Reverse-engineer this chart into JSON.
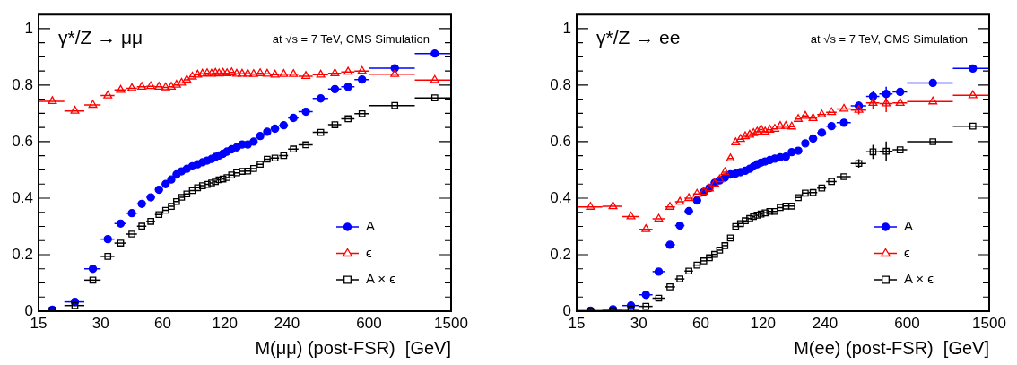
{
  "chart_data": [
    {
      "type": "scatter",
      "title": "γ*/Z → μμ",
      "xlabel": "M(μμ) (post-FSR)  [GeV]",
      "annotations": [
        "at √s = 7 TeV, CMS Simulation"
      ],
      "log": "x",
      "grid": false,
      "legend": "bottom right",
      "xlim": [
        15,
        1500
      ],
      "xticks": [
        15,
        30,
        60,
        120,
        240,
        600,
        1500
      ],
      "ylim": [
        0,
        1.05
      ],
      "yticks": [
        0,
        {
          "value": 0.05,
          "label": null
        },
        {
          "value": 0.1,
          "label": null
        },
        {
          "value": 0.15,
          "label": null
        },
        0.2,
        {
          "value": 0.25,
          "label": null
        },
        {
          "value": 0.3,
          "label": null
        },
        {
          "value": 0.35,
          "label": null
        },
        0.4,
        {
          "value": 0.45,
          "label": null
        },
        {
          "value": 0.5,
          "label": null
        },
        {
          "value": 0.55,
          "label": null
        },
        0.6,
        {
          "value": 0.65,
          "label": null
        },
        {
          "value": 0.7,
          "label": null
        },
        {
          "value": 0.75,
          "label": null
        },
        0.8,
        {
          "value": 0.85,
          "label": null
        },
        {
          "value": 0.9,
          "label": null
        },
        {
          "value": 0.95,
          "label": null
        },
        1
      ],
      "x": [
        17.5,
        22.5,
        27.5,
        32.5,
        37.5,
        42.5,
        47.5,
        52.5,
        57.5,
        62,
        66,
        70,
        74,
        78.5,
        83.5,
        88.5,
        93.5,
        98.5,
        103.5,
        108,
        112.5,
        117.5,
        123,
        129.5,
        137,
        145.5,
        155,
        165.5,
        178,
        192.5,
        210,
        231.5,
        258,
        296.5,
        350,
        410,
        475,
        555,
        800,
        1250
      ],
      "series": [
        {
          "name": "A",
          "color": "#0000ff",
          "marker": "circle",
          "values": [
            0.005,
            0.033,
            0.15,
            0.255,
            0.31,
            0.347,
            0.38,
            0.403,
            0.43,
            0.45,
            0.466,
            0.484,
            0.495,
            0.504,
            0.513,
            0.52,
            0.527,
            0.533,
            0.539,
            0.546,
            0.551,
            0.557,
            0.565,
            0.573,
            0.58,
            0.59,
            0.59,
            0.6,
            0.62,
            0.635,
            0.646,
            0.658,
            0.684,
            0.706,
            0.753,
            0.786,
            0.794,
            0.82,
            0.86,
            0.912
          ],
          "xerrors": [
            null,
            [
              20,
              25
            ],
            [
              25,
              30
            ],
            [
              30,
              35
            ],
            [
              35,
              40
            ],
            [
              40,
              45
            ],
            [
              45,
              50
            ],
            [
              50,
              55
            ],
            [
              55,
              60
            ],
            [
              60,
              64
            ],
            [
              64,
              68
            ],
            [
              68,
              72
            ],
            [
              72,
              76
            ],
            [
              76,
              81
            ],
            [
              81,
              86
            ],
            [
              86,
              91
            ],
            [
              91,
              96
            ],
            [
              96,
              101
            ],
            [
              101,
              106
            ],
            [
              106,
              110
            ],
            [
              110,
              115
            ],
            [
              115,
              120
            ],
            [
              120,
              126
            ],
            [
              126,
              133
            ],
            [
              133,
              141
            ],
            [
              141,
              150
            ],
            [
              150,
              160
            ],
            [
              160,
              171
            ],
            [
              171,
              185
            ],
            [
              185,
              200
            ],
            [
              200,
              220
            ],
            [
              220,
              243
            ],
            [
              243,
              273
            ],
            [
              273,
              320
            ],
            [
              320,
              380
            ],
            [
              380,
              440
            ],
            [
              440,
              510
            ],
            [
              510,
              600
            ],
            [
              600,
              1000
            ],
            [
              1000,
              1500
            ]
          ]
        },
        {
          "name": "ϵ",
          "color": "#ff0000",
          "marker": "triangle",
          "values": [
            0.743,
            0.709,
            0.73,
            0.763,
            0.783,
            0.789,
            0.794,
            0.796,
            0.794,
            0.792,
            0.794,
            0.801,
            0.808,
            0.819,
            0.83,
            0.837,
            0.84,
            0.842,
            0.84,
            0.843,
            0.841,
            0.843,
            0.842,
            0.845,
            0.84,
            0.84,
            0.84,
            0.839,
            0.842,
            0.84,
            0.837,
            0.839,
            0.839,
            0.832,
            0.837,
            0.842,
            0.847,
            0.85,
            0.839,
            0.818
          ],
          "xerrors": [
            [
              15,
              20
            ],
            [
              20,
              25
            ],
            [
              25,
              30
            ],
            [
              30,
              35
            ],
            [
              35,
              40
            ],
            [
              40,
              45
            ],
            [
              45,
              50
            ],
            [
              50,
              55
            ],
            [
              55,
              60
            ],
            [
              60,
              64
            ],
            [
              64,
              68
            ],
            [
              68,
              72
            ],
            [
              72,
              76
            ],
            [
              76,
              81
            ],
            [
              81,
              86
            ],
            [
              86,
              91
            ],
            [
              91,
              96
            ],
            [
              96,
              101
            ],
            [
              101,
              106
            ],
            [
              106,
              110
            ],
            [
              110,
              115
            ],
            [
              115,
              120
            ],
            [
              120,
              126
            ],
            [
              126,
              133
            ],
            [
              133,
              141
            ],
            [
              141,
              150
            ],
            [
              150,
              160
            ],
            [
              160,
              171
            ],
            [
              171,
              185
            ],
            [
              185,
              200
            ],
            [
              200,
              220
            ],
            [
              220,
              243
            ],
            [
              243,
              273
            ],
            [
              273,
              320
            ],
            [
              320,
              380
            ],
            [
              380,
              440
            ],
            [
              440,
              510
            ],
            [
              510,
              600
            ],
            [
              600,
              1000
            ],
            [
              1000,
              1500
            ]
          ]
        },
        {
          "name": "A × ϵ",
          "color": "#000000",
          "marker": "square",
          "values": [
            0.004,
            0.02,
            0.11,
            0.194,
            0.241,
            0.273,
            0.301,
            0.318,
            0.342,
            0.357,
            0.371,
            0.388,
            0.403,
            0.415,
            0.427,
            0.437,
            0.444,
            0.449,
            0.454,
            0.459,
            0.465,
            0.468,
            0.473,
            0.482,
            0.49,
            0.495,
            0.496,
            0.505,
            0.52,
            0.538,
            0.542,
            0.551,
            0.574,
            0.589,
            0.633,
            0.66,
            0.681,
            0.699,
            0.728,
            0.755
          ],
          "xerrors": [
            null,
            [
              20,
              25
            ],
            [
              25,
              30
            ],
            [
              30,
              35
            ],
            [
              35,
              40
            ],
            [
              40,
              45
            ],
            [
              45,
              50
            ],
            [
              50,
              55
            ],
            [
              55,
              60
            ],
            [
              60,
              64
            ],
            [
              64,
              68
            ],
            [
              68,
              72
            ],
            [
              72,
              76
            ],
            [
              76,
              81
            ],
            [
              81,
              86
            ],
            [
              86,
              91
            ],
            [
              91,
              96
            ],
            [
              96,
              101
            ],
            [
              101,
              106
            ],
            [
              106,
              110
            ],
            [
              110,
              115
            ],
            [
              115,
              120
            ],
            [
              120,
              126
            ],
            [
              126,
              133
            ],
            [
              133,
              141
            ],
            [
              141,
              150
            ],
            [
              150,
              160
            ],
            [
              160,
              171
            ],
            [
              171,
              185
            ],
            [
              185,
              200
            ],
            [
              200,
              220
            ],
            [
              220,
              243
            ],
            [
              243,
              273
            ],
            [
              273,
              320
            ],
            [
              320,
              380
            ],
            [
              380,
              440
            ],
            [
              440,
              510
            ],
            [
              510,
              600
            ],
            [
              600,
              1000
            ],
            [
              1000,
              1500
            ]
          ]
        }
      ]
    },
    {
      "type": "scatter",
      "title": "γ*/Z → ee",
      "xlabel": "M(ee) (post-FSR)  [GeV]",
      "annotations": [
        "at √s = 7 TeV, CMS Simulation"
      ],
      "log": "x",
      "grid": false,
      "legend": "bottom right",
      "xlim": [
        15,
        1500
      ],
      "xticks": [
        15,
        30,
        60,
        120,
        240,
        600,
        1500
      ],
      "ylim": [
        0,
        1.05
      ],
      "yticks": [
        0,
        {
          "value": 0.05,
          "label": null
        },
        {
          "value": 0.1,
          "label": null
        },
        {
          "value": 0.15,
          "label": null
        },
        0.2,
        {
          "value": 0.25,
          "label": null
        },
        {
          "value": 0.3,
          "label": null
        },
        {
          "value": 0.35,
          "label": null
        },
        0.4,
        {
          "value": 0.45,
          "label": null
        },
        {
          "value": 0.5,
          "label": null
        },
        {
          "value": 0.55,
          "label": null
        },
        0.6,
        {
          "value": 0.65,
          "label": null
        },
        {
          "value": 0.7,
          "label": null
        },
        {
          "value": 0.75,
          "label": null
        },
        0.8,
        {
          "value": 0.85,
          "label": null
        },
        {
          "value": 0.9,
          "label": null
        },
        {
          "value": 0.95,
          "label": null
        },
        1
      ],
      "x": [
        17.5,
        22.5,
        27.5,
        32.5,
        37.5,
        42.5,
        47.5,
        52.5,
        57.5,
        62,
        66,
        70,
        74,
        78.5,
        83.5,
        88.5,
        93.5,
        98.5,
        103.5,
        108,
        112.5,
        117.5,
        123,
        129.5,
        137,
        145.5,
        155,
        165.5,
        178,
        192.5,
        210,
        231.5,
        258,
        296.5,
        350,
        410,
        475,
        555,
        800,
        1250
      ],
      "series": [
        {
          "name": "A",
          "color": "#0000ff",
          "marker": "circle",
          "values": [
            0.002,
            0.007,
            0.02,
            0.058,
            0.14,
            0.235,
            0.303,
            0.354,
            0.392,
            0.422,
            0.436,
            0.454,
            0.463,
            0.473,
            0.484,
            0.487,
            0.492,
            0.497,
            0.504,
            0.512,
            0.52,
            0.526,
            0.53,
            0.535,
            0.54,
            0.545,
            0.547,
            0.563,
            0.568,
            0.594,
            0.611,
            0.632,
            0.655,
            0.667,
            0.727,
            0.76,
            0.769,
            0.776,
            0.808,
            0.859
          ],
          "errors": [
            null,
            null,
            null,
            null,
            null,
            null,
            null,
            null,
            null,
            null,
            null,
            null,
            null,
            null,
            null,
            null,
            null,
            null,
            null,
            null,
            null,
            null,
            null,
            null,
            null,
            null,
            null,
            null,
            null,
            null,
            null,
            null,
            null,
            null,
            0.015,
            0.02,
            0.025,
            null,
            null,
            null
          ],
          "xerrors": [
            [
              15,
              20
            ],
            [
              20,
              25
            ],
            [
              25,
              30
            ],
            [
              30,
              35
            ],
            [
              35,
              40
            ],
            [
              40,
              45
            ],
            [
              45,
              50
            ],
            [
              50,
              55
            ],
            [
              55,
              60
            ],
            [
              60,
              64
            ],
            [
              64,
              68
            ],
            [
              68,
              72
            ],
            [
              72,
              76
            ],
            [
              76,
              81
            ],
            [
              81,
              86
            ],
            [
              86,
              91
            ],
            null,
            [
              96,
              101
            ],
            [
              101,
              106
            ],
            [
              106,
              110
            ],
            [
              110,
              115
            ],
            [
              115,
              120
            ],
            null,
            [
              126,
              133
            ],
            [
              133,
              141
            ],
            [
              141,
              150
            ],
            [
              150,
              160
            ],
            [
              160,
              171
            ],
            [
              171,
              185
            ],
            [
              185,
              200
            ],
            [
              200,
              220
            ],
            [
              220,
              243
            ],
            [
              243,
              273
            ],
            [
              273,
              320
            ],
            [
              320,
              380
            ],
            [
              380,
              440
            ],
            [
              440,
              510
            ],
            [
              510,
              600
            ],
            [
              600,
              1000
            ],
            [
              1000,
              1500
            ]
          ]
        },
        {
          "name": "ϵ",
          "color": "#ff0000",
          "marker": "triangle",
          "values": [
            0.369,
            0.371,
            0.335,
            0.29,
            0.327,
            0.369,
            0.387,
            0.4,
            0.415,
            0.422,
            0.434,
            0.451,
            0.466,
            0.492,
            0.54,
            0.597,
            0.609,
            0.619,
            0.624,
            0.63,
            0.635,
            0.643,
            0.635,
            0.642,
            0.645,
            0.655,
            0.655,
            0.653,
            0.68,
            0.691,
            0.683,
            0.696,
            0.704,
            0.716,
            0.712,
            0.737,
            0.735,
            0.737,
            0.742,
            0.764
          ],
          "errors": [
            null,
            null,
            null,
            null,
            null,
            null,
            null,
            null,
            null,
            null,
            null,
            null,
            null,
            null,
            null,
            null,
            null,
            null,
            null,
            null,
            null,
            null,
            null,
            null,
            null,
            null,
            null,
            null,
            null,
            null,
            null,
            null,
            null,
            null,
            0.015,
            0.02,
            0.03,
            null,
            null,
            null
          ],
          "xerrors": [
            [
              15,
              20
            ],
            [
              20,
              25
            ],
            [
              25,
              30
            ],
            [
              30,
              35
            ],
            [
              35,
              40
            ],
            [
              40,
              45
            ],
            [
              45,
              50
            ],
            [
              50,
              55
            ],
            [
              55,
              60
            ],
            [
              60,
              64
            ],
            [
              64,
              68
            ],
            [
              68,
              72
            ],
            [
              72,
              76
            ],
            [
              76,
              81
            ],
            [
              81,
              86
            ],
            [
              86,
              91
            ],
            [
              91,
              96
            ],
            [
              96,
              101
            ],
            [
              101,
              106
            ],
            [
              106,
              110
            ],
            [
              110,
              115
            ],
            [
              115,
              120
            ],
            [
              120,
              126
            ],
            [
              126,
              133
            ],
            [
              133,
              141
            ],
            [
              141,
              150
            ],
            [
              150,
              160
            ],
            [
              160,
              171
            ],
            [
              171,
              185
            ],
            [
              185,
              200
            ],
            [
              200,
              220
            ],
            [
              220,
              243
            ],
            [
              243,
              273
            ],
            [
              273,
              320
            ],
            [
              320,
              380
            ],
            [
              380,
              440
            ],
            [
              440,
              510
            ],
            [
              510,
              600
            ],
            [
              600,
              1000
            ],
            [
              1000,
              1500
            ]
          ]
        },
        {
          "name": "A × ϵ",
          "color": "#000000",
          "marker": "square",
          "values": [
            0,
            0.002,
            0.007,
            0.017,
            0.046,
            0.086,
            0.114,
            0.142,
            0.163,
            0.178,
            0.189,
            0.201,
            0.216,
            0.232,
            0.259,
            0.3,
            0.31,
            0.32,
            0.328,
            0.335,
            0.34,
            0.344,
            0.348,
            0.353,
            0.353,
            0.367,
            0.372,
            0.372,
            0.402,
            0.418,
            0.42,
            0.436,
            0.459,
            0.476,
            0.523,
            0.564,
            0.566,
            0.571,
            0.6,
            0.655
          ],
          "errors": [
            null,
            null,
            null,
            null,
            null,
            null,
            null,
            null,
            null,
            null,
            null,
            null,
            null,
            null,
            null,
            null,
            null,
            null,
            null,
            null,
            null,
            null,
            null,
            null,
            null,
            null,
            null,
            null,
            null,
            null,
            null,
            null,
            null,
            null,
            0.015,
            0.025,
            0.035,
            null,
            null,
            null
          ],
          "xerrors": [
            [
              15,
              20
            ],
            [
              20,
              25
            ],
            [
              25,
              30
            ],
            [
              30,
              35
            ],
            [
              35,
              40
            ],
            [
              40,
              45
            ],
            [
              45,
              50
            ],
            [
              50,
              55
            ],
            [
              55,
              60
            ],
            [
              60,
              64
            ],
            [
              64,
              68
            ],
            [
              68,
              72
            ],
            [
              72,
              76
            ],
            [
              76,
              81
            ],
            [
              81,
              86
            ],
            [
              86,
              91
            ],
            [
              91,
              96
            ],
            [
              96,
              101
            ],
            [
              101,
              106
            ],
            [
              106,
              110
            ],
            [
              110,
              115
            ],
            [
              115,
              120
            ],
            [
              120,
              126
            ],
            [
              126,
              133
            ],
            [
              133,
              141
            ],
            [
              141,
              150
            ],
            [
              150,
              160
            ],
            [
              160,
              171
            ],
            [
              171,
              185
            ],
            [
              185,
              200
            ],
            [
              200,
              220
            ],
            [
              220,
              243
            ],
            [
              243,
              273
            ],
            [
              273,
              320
            ],
            [
              320,
              380
            ],
            [
              380,
              440
            ],
            [
              440,
              510
            ],
            [
              510,
              600
            ],
            [
              600,
              1000
            ],
            [
              1000,
              1500
            ]
          ]
        }
      ]
    }
  ]
}
